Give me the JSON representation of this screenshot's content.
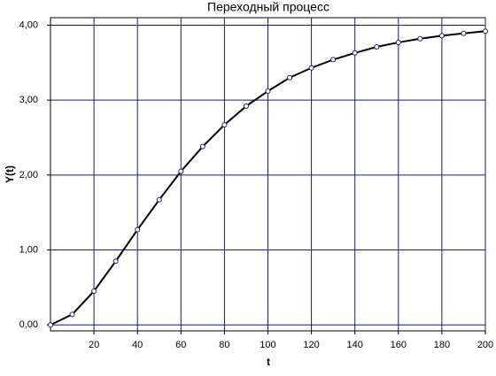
{
  "chart_data": {
    "type": "line",
    "title": "Переходный процесс",
    "x_label": "t",
    "y_label": "Y(t)",
    "x": [
      0,
      10,
      20,
      30,
      40,
      50,
      60,
      70,
      80,
      90,
      100,
      110,
      120,
      130,
      140,
      150,
      160,
      170,
      180,
      190,
      200
    ],
    "series": [
      {
        "color": "#000000",
        "values": [
          0,
          0.14,
          0.45,
          0.85,
          1.27,
          1.67,
          2.05,
          2.38,
          2.67,
          2.92,
          3.12,
          3.3,
          3.43,
          3.54,
          3.63,
          3.71,
          3.77,
          3.82,
          3.86,
          3.89,
          3.92
        ]
      }
    ],
    "xlim": [
      0,
      200
    ],
    "xticks": [
      20,
      40,
      60,
      80,
      100,
      120,
      140,
      160,
      180,
      200
    ],
    "ylim": [
      -0.08,
      4.1
    ],
    "yticks": [
      {
        "value": 0,
        "label": "0,00"
      },
      {
        "value": 1,
        "label": "1,00"
      },
      {
        "value": 2,
        "label": "2,00"
      },
      {
        "value": 3,
        "label": "3,00"
      },
      {
        "value": 4,
        "label": "4,00"
      }
    ],
    "grid": true,
    "grid_color": "#1a1a6e"
  }
}
